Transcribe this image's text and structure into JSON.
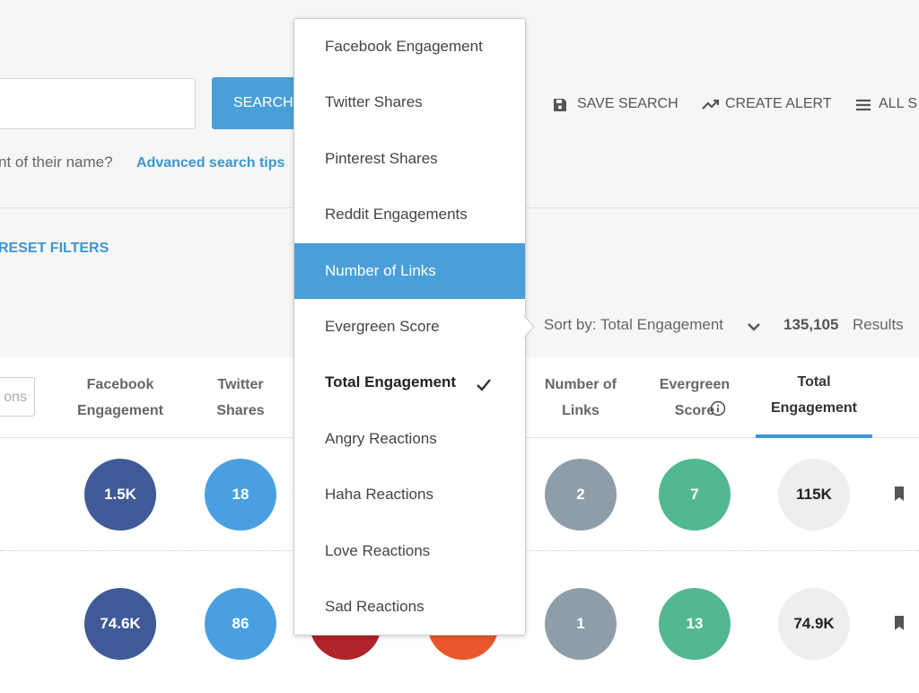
{
  "toolbar": {
    "search_button": "SEARCH",
    "actions": [
      "SAVE SEARCH",
      "CREATE ALERT",
      "ALL S"
    ]
  },
  "search_hint": {
    "text": "nt of their name?",
    "link": "Advanced search tips"
  },
  "reset_filters": "RESET FILTERS",
  "sort": {
    "label": "Sort by: Total Engagement",
    "count": "135,105",
    "count_label": "Results"
  },
  "dropdown": {
    "items": [
      "Facebook Engagement",
      "Twitter Shares",
      "Pinterest Shares",
      "Reddit Engagements",
      "Number of Links",
      "Evergreen Score",
      "Total Engagement",
      "Angry Reactions",
      "Haha Reactions",
      "Love Reactions",
      "Sad Reactions"
    ]
  },
  "table": {
    "filter_button": "ons",
    "columns": [
      "Facebook Engagement",
      "Twitter Shares",
      "Number of Links",
      "Evergreen Score",
      "Total Engagement"
    ],
    "rows": [
      [
        "1.5K",
        "18",
        "2",
        "7",
        "115K"
      ],
      [
        "74.6K",
        "86",
        "1",
        "13",
        "74.9K"
      ]
    ]
  }
}
